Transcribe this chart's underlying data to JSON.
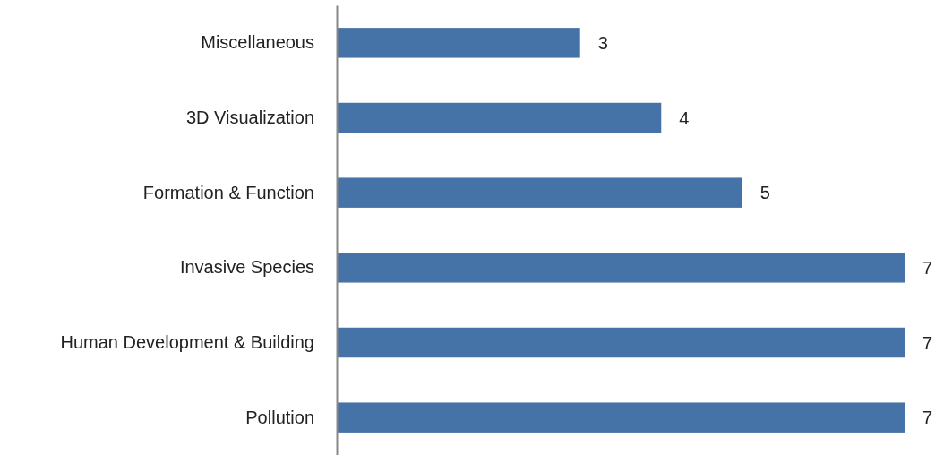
{
  "chart_data": {
    "type": "bar",
    "orientation": "horizontal",
    "categories": [
      "Miscellaneous",
      "3D Visualization",
      "Formation & Function",
      "Invasive Species",
      "Human Development & Building",
      "Pollution"
    ],
    "values": [
      3,
      4,
      5,
      7,
      7,
      7
    ],
    "color": "#4673a7",
    "xlim": [
      0,
      7
    ],
    "data_labels": true
  }
}
